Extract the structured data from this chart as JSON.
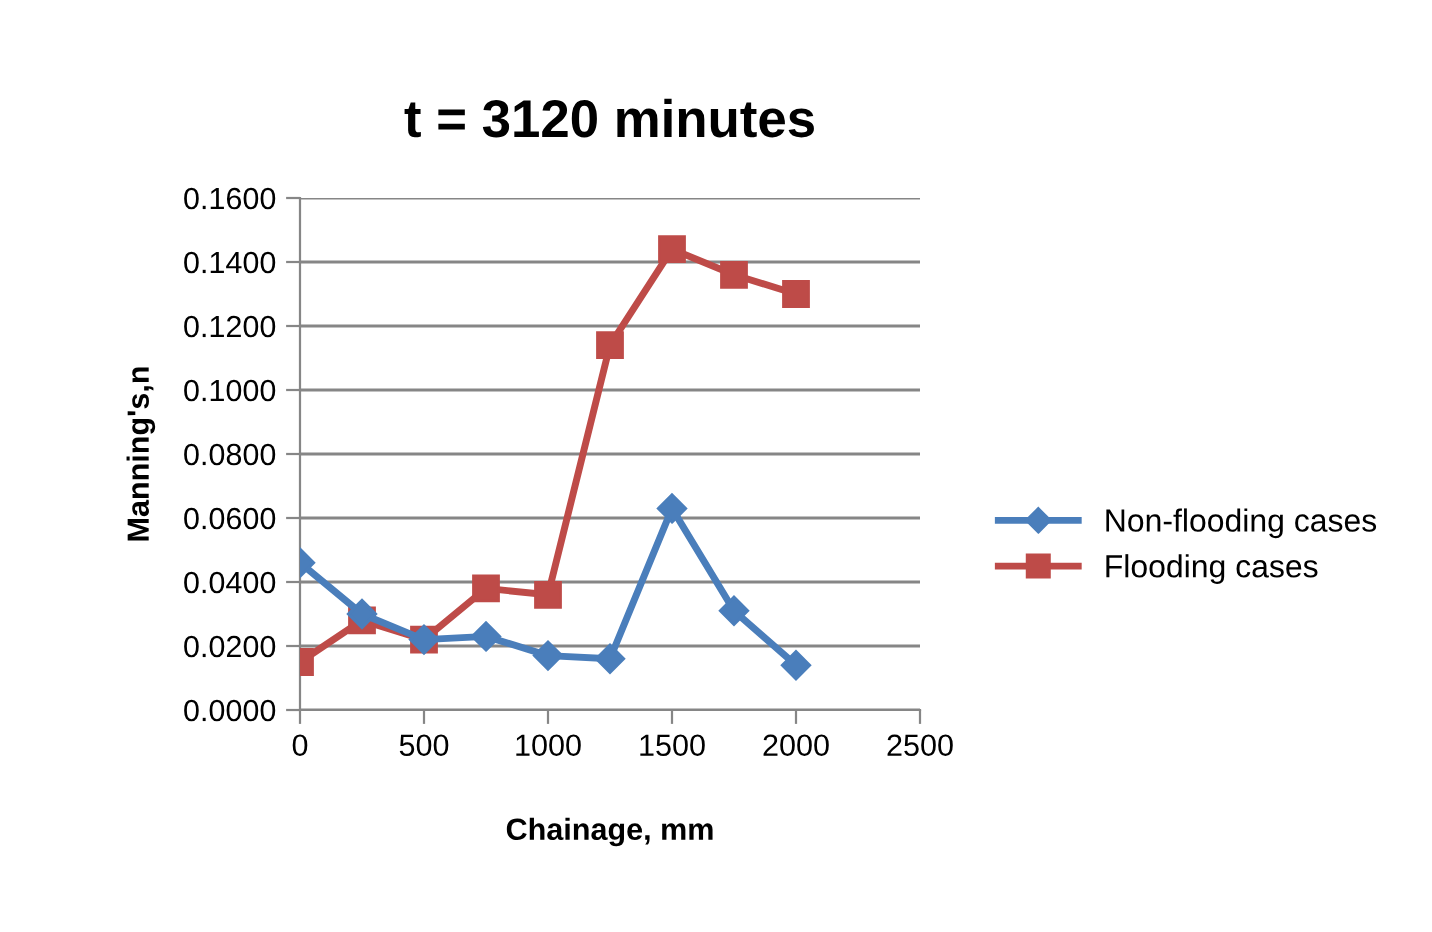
{
  "chart_data": {
    "type": "line",
    "title": "t = 3120 minutes",
    "xlabel": "Chainage, mm",
    "ylabel": "Manning's,n",
    "x": [
      0,
      250,
      500,
      750,
      1000,
      1250,
      1500,
      1750,
      2000
    ],
    "series": [
      {
        "name": "Non-flooding cases",
        "color": "#4a7ebb",
        "marker": "diamond",
        "values": [
          0.046,
          0.03,
          0.022,
          0.023,
          0.017,
          0.016,
          0.063,
          0.031,
          0.014
        ]
      },
      {
        "name": "Flooding cases",
        "color": "#be4b48",
        "marker": "square",
        "values": [
          0.015,
          0.028,
          0.022,
          0.038,
          0.036,
          0.114,
          0.144,
          0.136,
          0.13
        ]
      }
    ],
    "xlim": [
      0,
      2500
    ],
    "xticks": [
      0,
      500,
      1000,
      1500,
      2000,
      2500
    ],
    "ylim": [
      0,
      0.16
    ],
    "yticks": [
      {
        "value": 0,
        "label": "0.0000"
      },
      {
        "value": 0.02,
        "label": "0.0200"
      },
      {
        "value": 0.04,
        "label": "0.0400"
      },
      {
        "value": 0.06,
        "label": "0.0600"
      },
      {
        "value": 0.08,
        "label": "0.0800"
      },
      {
        "value": 0.1,
        "label": "0.1000"
      },
      {
        "value": 0.12,
        "label": "0.1200"
      },
      {
        "value": 0.14,
        "label": "0.1400"
      },
      {
        "value": 0.16,
        "label": "0.1600"
      }
    ],
    "grid": "y",
    "legend": "right",
    "line_style": "solid"
  }
}
